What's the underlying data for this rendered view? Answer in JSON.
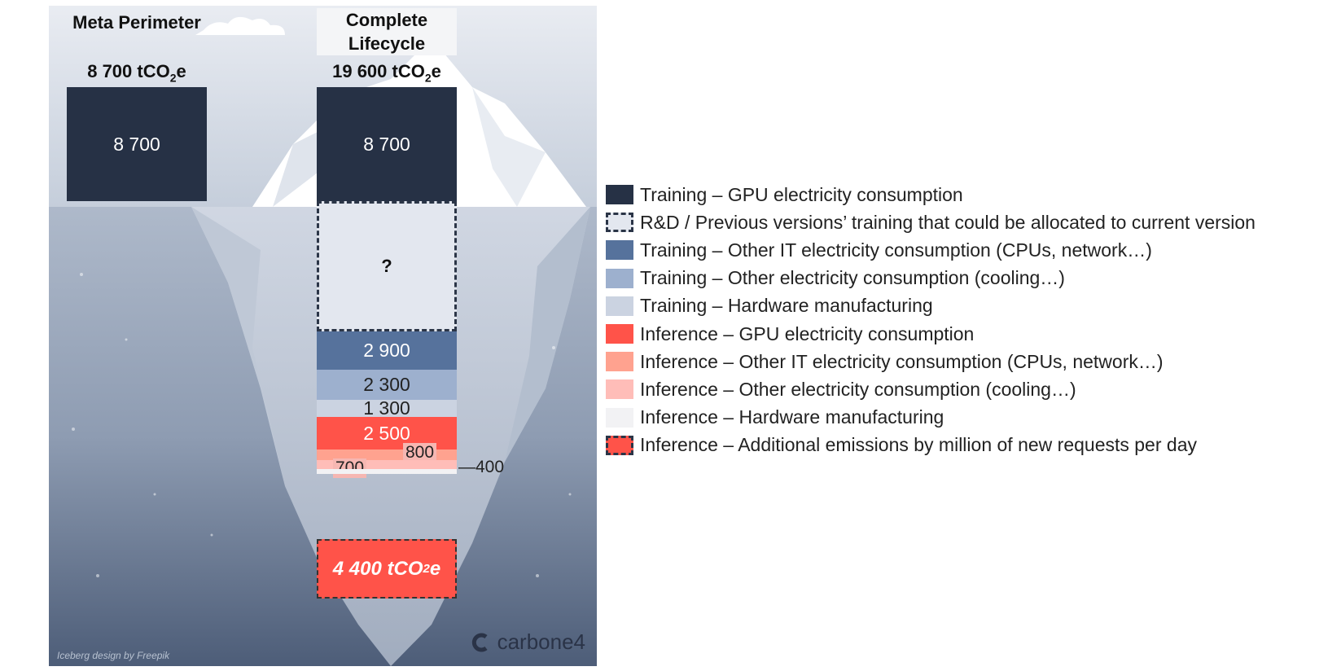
{
  "headers": {
    "meta": "Meta Perimeter",
    "lifecycle": "Complete\nLifecycle"
  },
  "totals": {
    "meta_prefix": "8 700 tCO",
    "meta_sub": "2",
    "meta_suffix": "e",
    "lifecycle_prefix": "19 600 tCO",
    "lifecycle_sub": "2",
    "lifecycle_suffix": "e"
  },
  "chart_data": {
    "type": "bar",
    "stacked": true,
    "categories": [
      "Meta Perimeter",
      "Complete Lifecycle"
    ],
    "series": [
      {
        "name": "Training – GPU electricity consumption",
        "color": "#263145",
        "values": [
          8700,
          8700
        ],
        "labels": [
          "8 700",
          "8 700"
        ]
      },
      {
        "name": "R&D / Previous versions’ training that could be allocated to current version",
        "color": "#e3e7ef",
        "values": [
          null,
          null
        ],
        "labels": [
          "",
          "?"
        ]
      },
      {
        "name": "Training – Other IT electricity consumption (CPUs, network…)",
        "color": "#56729c",
        "values": [
          null,
          2900
        ],
        "labels": [
          "",
          "2 900"
        ]
      },
      {
        "name": "Training – Other electricity consumption (cooling…)",
        "color": "#9db0ce",
        "values": [
          null,
          2300
        ],
        "labels": [
          "",
          "2 300"
        ]
      },
      {
        "name": "Training – Hardware manufacturing",
        "color": "#cbd3e1",
        "values": [
          null,
          1300
        ],
        "labels": [
          "",
          "1 300"
        ]
      },
      {
        "name": "Inference – GPU electricity consumption",
        "color": "#ff5349",
        "values": [
          null,
          2500
        ],
        "labels": [
          "",
          "2 500"
        ]
      },
      {
        "name": "Inference – Other IT electricity consumption (CPUs, network…)",
        "color": "#ffa28f",
        "values": [
          null,
          800
        ],
        "labels": [
          "",
          "800"
        ]
      },
      {
        "name": "Inference – Other electricity consumption (cooling…)",
        "color": "#ffbdb8",
        "values": [
          null,
          700
        ],
        "labels": [
          "",
          "700"
        ]
      },
      {
        "name": "Inference – Hardware manufacturing",
        "color": "#f2f2f4",
        "values": [
          null,
          400
        ],
        "labels": [
          "",
          "400"
        ]
      }
    ],
    "additional": {
      "name": "Inference – Additional emissions by million of new requests per day",
      "color": "#ff5349",
      "value": 4400,
      "label_prefix": "4 400 tCO",
      "label_sub": "2",
      "label_suffix": "e"
    },
    "unit": "tCO2e"
  },
  "legend": {
    "items": [
      {
        "label": "Training – GPU electricity consumption",
        "color": "#263145",
        "dashed": false
      },
      {
        "label": "R&D / Previous versions’ training that could be allocated to current version",
        "color": "#e3e7ef",
        "dashed": true
      },
      {
        "label": "Training – Other IT electricity consumption (CPUs, network…)",
        "color": "#56729c",
        "dashed": false
      },
      {
        "label": "Training – Other electricity consumption (cooling…)",
        "color": "#9db0ce",
        "dashed": false
      },
      {
        "label": "Training – Hardware manufacturing",
        "color": "#cbd3e1",
        "dashed": false
      },
      {
        "label": "Inference – GPU electricity consumption",
        "color": "#ff5349",
        "dashed": false
      },
      {
        "label": "Inference – Other IT electricity consumption (CPUs, network…)",
        "color": "#ffa28f",
        "dashed": false
      },
      {
        "label": "Inference – Other electricity consumption (cooling…)",
        "color": "#ffbdb8",
        "dashed": false
      },
      {
        "label": "Inference – Hardware manufacturing",
        "color": "#f2f2f4",
        "dashed": false
      },
      {
        "label": "Inference – Additional emissions by million of new requests per day",
        "color": "#ff5349",
        "dashed": true
      }
    ]
  },
  "credit": "Iceberg design by Freepik",
  "logo": {
    "text": "carbone4",
    "icon": "carbone4-logo-icon"
  }
}
